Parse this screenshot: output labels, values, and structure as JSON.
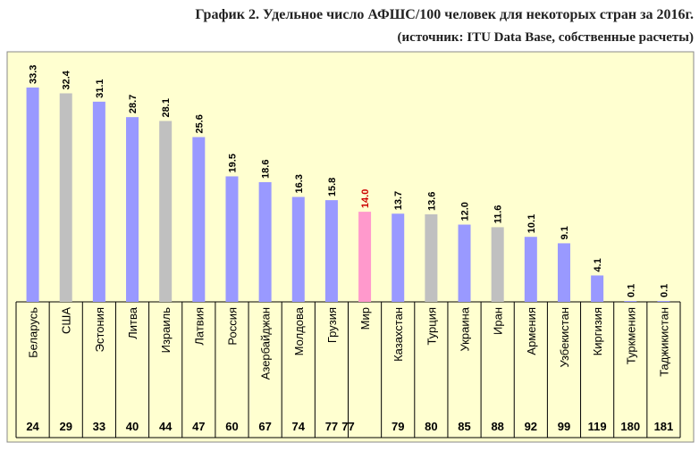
{
  "title": "График 2. Удельное число АФШС/100 человек для некоторых стран за 2016г.",
  "subtitle": "(источник:  ITU Data Base, собственные расчеты)",
  "colors": {
    "panel_bg": "#ffffd0",
    "panel_border": "#888888",
    "blue_bar": "#9999ff",
    "gray_bar": "#c0c0c0",
    "pink_bar": "#ff99cc",
    "highlight_label": "#cc0000",
    "text": "#000000"
  },
  "chart_data": {
    "type": "bar",
    "title": "График 2. Удельное число АФШС/100 человек для некоторых стран за 2016г.",
    "subtitle": "(источник:  ITU Data Base, собственные расчеты)",
    "ylim": [
      0,
      35
    ],
    "categories": [
      "Беларусь",
      "США",
      "Эстония",
      "Литва",
      "Израиль",
      "Латвия",
      "Россия",
      "Азербайджан",
      "Молдова",
      "Грузия",
      "Мир",
      "Казахстан",
      "Турция",
      "Украина",
      "Иран",
      "Армения",
      "Узбекистан",
      "Киргизия",
      "Туркмения",
      "Таджикистан"
    ],
    "values": [
      33.3,
      32.4,
      31.1,
      28.7,
      28.1,
      25.6,
      19.5,
      18.6,
      16.3,
      15.8,
      14.0,
      13.7,
      13.6,
      12.0,
      11.6,
      10.1,
      9.1,
      4.1,
      0.1,
      0.1
    ],
    "value_labels": [
      "33.3",
      "32.4",
      "31.1",
      "28.7",
      "28.1",
      "25.6",
      "19.5",
      "18.6",
      "16.3",
      "15.8",
      "14.0",
      "13.7",
      "13.6",
      "12.0",
      "11.6",
      "10.1",
      "9.1",
      "4.1",
      "0.1",
      "0.1"
    ],
    "ranks": [
      "24",
      "29",
      "33",
      "40",
      "44",
      "47",
      "60",
      "67",
      "74",
      "77",
      "",
      "79",
      "80",
      "85",
      "88",
      "92",
      "99",
      "119",
      "180",
      "181"
    ],
    "world_rank": "77",
    "bar_colors": [
      "blue",
      "gray",
      "blue",
      "blue",
      "gray",
      "blue",
      "blue",
      "blue",
      "blue",
      "blue",
      "pink",
      "blue",
      "gray",
      "blue",
      "gray",
      "blue",
      "blue",
      "blue",
      "blue",
      "blue"
    ],
    "grid": false,
    "legend": "none"
  }
}
